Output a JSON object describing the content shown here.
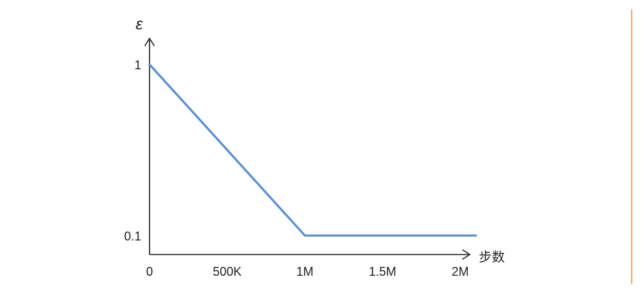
{
  "chart_data": {
    "type": "line",
    "title": "",
    "xlabel": "步数",
    "ylabel": "ε",
    "x_ticks": [
      {
        "value": 0,
        "label": "0"
      },
      {
        "value": 500000,
        "label": "500K"
      },
      {
        "value": 1000000,
        "label": "1M"
      },
      {
        "value": 1500000,
        "label": "1.5M"
      },
      {
        "value": 2000000,
        "label": "2M"
      }
    ],
    "y_ticks": [
      {
        "value": 1,
        "label": "1"
      },
      {
        "value": 0.1,
        "label": "0.1"
      }
    ],
    "xlim": [
      0,
      2150000
    ],
    "ylim": [
      0,
      1.18
    ],
    "grid": false,
    "series": [
      {
        "x": [
          0,
          1000000,
          2100000
        ],
        "y": [
          1,
          0.1,
          0.1
        ]
      }
    ],
    "line_color": "#5b8fd1",
    "axis_color": "#222222"
  },
  "frame": {
    "accent_color": "#f0a36a"
  }
}
